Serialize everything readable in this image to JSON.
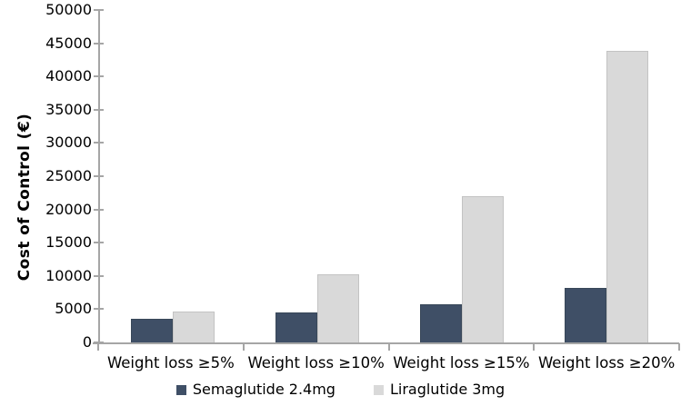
{
  "chart_data": {
    "type": "bar",
    "title": "",
    "xlabel": "",
    "ylabel": "Cost of Control (€)",
    "ylim": [
      0,
      50000
    ],
    "ytick_step": 5000,
    "yticks": [
      0,
      5000,
      10000,
      15000,
      20000,
      25000,
      30000,
      35000,
      40000,
      45000,
      50000
    ],
    "categories": [
      "Weight loss ≥5%",
      "Weight loss ≥10%",
      "Weight loss ≥15%",
      "Weight loss ≥20%"
    ],
    "series": [
      {
        "name": "Semaglutide 2.4mg",
        "color": "#3f4f66",
        "values": [
          3600,
          4500,
          5700,
          8200
        ]
      },
      {
        "name": "Liraglutide 3mg",
        "color": "#d9d9d9",
        "values": [
          4600,
          10200,
          22000,
          43800
        ]
      }
    ],
    "grid": false,
    "legend_position": "bottom",
    "axis_color": "#a6a6a6",
    "text_color": "#000000",
    "background_color": "#ffffff"
  }
}
